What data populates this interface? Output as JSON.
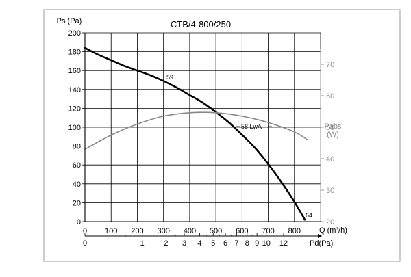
{
  "chart_data": {
    "type": "line",
    "title": "CTB/4-800/250",
    "ylabel": "Ps (Pa)",
    "xlabel": "Q (m³/h)",
    "y2label": [
      "Pabs",
      "(W)"
    ],
    "x2label": "Pd(Pa)",
    "xlim": [
      0,
      900
    ],
    "ylim": [
      0,
      200
    ],
    "y2lim": [
      20,
      80
    ],
    "grid": true,
    "x_ticks": [
      "0",
      "100",
      "200",
      "300",
      "400",
      "500",
      "600",
      "700",
      "800"
    ],
    "y_ticks": [
      "0",
      "20",
      "40",
      "60",
      "80",
      "100",
      "120",
      "140",
      "160",
      "180",
      "200"
    ],
    "y2_ticks": [
      "20",
      "30",
      "40",
      "50",
      "60",
      "70"
    ],
    "pd_ticks": [
      "0",
      "1",
      "2",
      "3",
      "4",
      "5",
      "6",
      "7",
      "8",
      "9",
      "10",
      "12"
    ],
    "series": [
      {
        "axis": "left",
        "color": "#000000",
        "x": [
          0,
          50,
          100,
          150,
          200,
          250,
          300,
          350,
          400,
          450,
          500,
          550,
          600,
          650,
          700,
          750,
          800,
          840
        ],
        "y": [
          184,
          177,
          171,
          165,
          160,
          155,
          149,
          142,
          134,
          126,
          116,
          105,
          92,
          78,
          61,
          42,
          21,
          2
        ]
      },
      {
        "axis": "right",
        "color": "#888888",
        "x": [
          0,
          100,
          200,
          300,
          400,
          500,
          600,
          700,
          800,
          850
        ],
        "y": [
          43,
          47.5,
          51,
          53.5,
          54.6,
          54.6,
          53.5,
          51.5,
          48.5,
          46
        ]
      }
    ],
    "annotations": [
      "59",
      "58 LwA",
      "64"
    ]
  }
}
